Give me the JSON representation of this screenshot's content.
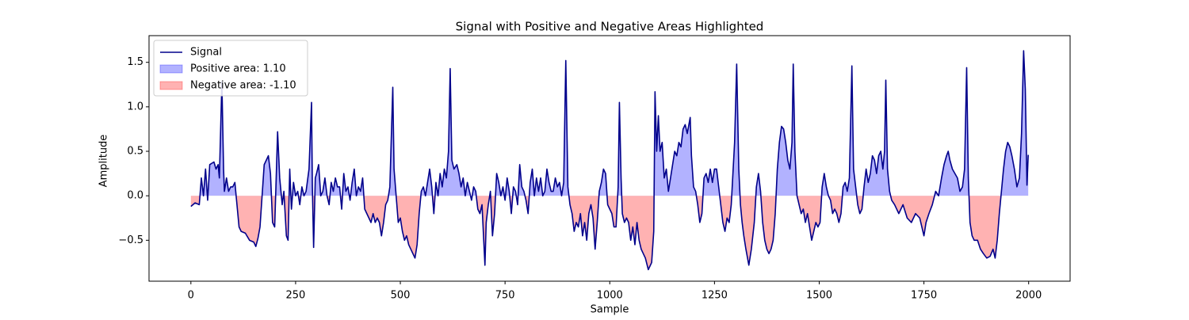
{
  "chart_data": {
    "type": "line",
    "title": "Signal with Positive and Negative Areas Highlighted",
    "x_label": "Sample",
    "y_label": "Amplitude",
    "x": [
      0,
      10,
      20,
      25,
      30,
      35,
      40,
      45,
      55,
      60,
      65,
      68,
      74,
      78,
      80,
      85,
      90,
      95,
      100,
      105,
      110,
      115,
      120,
      130,
      140,
      150,
      155,
      160,
      165,
      170,
      175,
      180,
      185,
      190,
      195,
      200,
      203,
      207,
      212,
      218,
      222,
      228,
      232,
      236,
      240,
      245,
      250,
      255,
      260,
      265,
      270,
      275,
      282,
      288,
      290,
      293,
      297,
      300,
      305,
      310,
      315,
      320,
      325,
      330,
      335,
      340,
      345,
      350,
      355,
      360,
      365,
      370,
      375,
      380,
      385,
      390,
      395,
      400,
      405,
      410,
      415,
      420,
      425,
      430,
      435,
      440,
      445,
      450,
      455,
      460,
      465,
      470,
      475,
      482,
      485,
      490,
      495,
      500,
      505,
      510,
      515,
      520,
      525,
      530,
      535,
      540,
      545,
      550,
      555,
      560,
      565,
      570,
      575,
      580,
      585,
      590,
      595,
      600,
      605,
      610,
      615,
      619,
      623,
      628,
      635,
      640,
      645,
      650,
      655,
      660,
      665,
      670,
      675,
      680,
      685,
      690,
      695,
      702,
      705,
      710,
      715,
      720,
      725,
      730,
      735,
      740,
      745,
      750,
      755,
      760,
      765,
      770,
      775,
      780,
      785,
      790,
      795,
      800,
      805,
      810,
      815,
      820,
      825,
      830,
      835,
      840,
      845,
      850,
      855,
      860,
      865,
      870,
      875,
      880,
      885,
      890,
      895,
      900,
      905,
      910,
      915,
      920,
      925,
      930,
      935,
      940,
      945,
      950,
      955,
      960,
      965,
      970,
      975,
      980,
      985,
      990,
      995,
      1000,
      1005,
      1010,
      1015,
      1020,
      1023,
      1027,
      1030,
      1035,
      1040,
      1045,
      1050,
      1055,
      1060,
      1065,
      1070,
      1075,
      1080,
      1085,
      1092,
      1100,
      1105,
      1108,
      1112,
      1116,
      1120,
      1125,
      1130,
      1135,
      1140,
      1145,
      1150,
      1155,
      1160,
      1165,
      1170,
      1175,
      1180,
      1185,
      1192,
      1195,
      1200,
      1205,
      1210,
      1215,
      1220,
      1225,
      1230,
      1235,
      1240,
      1245,
      1250,
      1255,
      1260,
      1265,
      1270,
      1275,
      1280,
      1285,
      1290,
      1298,
      1303,
      1308,
      1312,
      1316,
      1320,
      1325,
      1332,
      1338,
      1345,
      1350,
      1355,
      1360,
      1365,
      1370,
      1375,
      1380,
      1385,
      1390,
      1395,
      1400,
      1405,
      1410,
      1415,
      1420,
      1425,
      1430,
      1435,
      1438,
      1442,
      1447,
      1452,
      1457,
      1462,
      1467,
      1472,
      1477,
      1482,
      1487,
      1492,
      1497,
      1502,
      1507,
      1512,
      1517,
      1522,
      1527,
      1532,
      1537,
      1542,
      1547,
      1552,
      1557,
      1562,
      1567,
      1572,
      1578,
      1582,
      1587,
      1592,
      1597,
      1602,
      1607,
      1612,
      1617,
      1622,
      1627,
      1632,
      1637,
      1642,
      1647,
      1652,
      1656,
      1659,
      1663,
      1668,
      1673,
      1680,
      1690,
      1700,
      1710,
      1720,
      1730,
      1740,
      1745,
      1750,
      1755,
      1762,
      1770,
      1778,
      1785,
      1792,
      1798,
      1804,
      1808,
      1812,
      1818,
      1824,
      1830,
      1836,
      1842,
      1847,
      1852,
      1856,
      1860,
      1865,
      1870,
      1878,
      1885,
      1892,
      1900,
      1908,
      1915,
      1920,
      1925,
      1930,
      1935,
      1940,
      1945,
      1950,
      1955,
      1960,
      1966,
      1972,
      1978,
      1983,
      1988,
      1992,
      1996,
      1999
    ],
    "series": [
      {
        "name": "Signal",
        "color": "#00008b",
        "values": [
          -0.12,
          -0.08,
          -0.1,
          0.2,
          0.0,
          0.3,
          -0.05,
          0.35,
          0.38,
          0.3,
          0.35,
          0.2,
          1.28,
          0.3,
          0.05,
          0.2,
          0.05,
          0.1,
          0.1,
          0.15,
          -0.1,
          -0.35,
          -0.4,
          -0.42,
          -0.5,
          -0.52,
          -0.57,
          -0.48,
          -0.35,
          0.0,
          0.35,
          0.4,
          0.45,
          0.25,
          -0.3,
          -0.35,
          0.1,
          0.72,
          0.2,
          -0.1,
          0.05,
          -0.45,
          -0.5,
          0.3,
          -0.15,
          0.15,
          0.0,
          0.05,
          -0.1,
          0.1,
          0.0,
          0.05,
          0.3,
          1.05,
          0.1,
          -0.58,
          0.2,
          0.25,
          0.35,
          0.0,
          0.05,
          0.2,
          0.0,
          -0.1,
          0.15,
          0.05,
          0.2,
          0.1,
          0.1,
          -0.15,
          0.25,
          0.05,
          0.1,
          -0.05,
          0.15,
          0.3,
          0.0,
          0.1,
          0.05,
          0.2,
          -0.15,
          -0.2,
          -0.25,
          -0.3,
          -0.2,
          -0.3,
          -0.25,
          -0.3,
          -0.45,
          -0.3,
          -0.1,
          -0.05,
          0.1,
          1.22,
          0.3,
          0.0,
          -0.3,
          -0.25,
          -0.4,
          -0.5,
          -0.45,
          -0.55,
          -0.6,
          -0.65,
          -0.7,
          -0.55,
          -0.2,
          0.05,
          0.1,
          0.0,
          0.15,
          0.3,
          0.1,
          -0.2,
          0.15,
          0.0,
          0.25,
          0.1,
          0.3,
          0.2,
          0.5,
          1.43,
          0.4,
          0.3,
          0.35,
          0.25,
          0.1,
          0.2,
          0.0,
          0.15,
          0.05,
          -0.05,
          0.1,
          0.05,
          -0.15,
          -0.2,
          -0.1,
          -0.78,
          -0.3,
          -0.1,
          0.05,
          -0.45,
          -0.2,
          0.25,
          0.15,
          0.0,
          0.1,
          -0.05,
          0.2,
          0.05,
          -0.2,
          0.1,
          0.05,
          -0.1,
          0.35,
          0.1,
          0.05,
          -0.05,
          -0.2,
          0.15,
          0.3,
          0.0,
          0.2,
          0.05,
          0.2,
          0.0,
          0.05,
          0.3,
          0.15,
          0.05,
          0.05,
          0.2,
          0.1,
          0.15,
          0.0,
          0.15,
          1.52,
          0.1,
          -0.1,
          -0.2,
          -0.4,
          -0.3,
          -0.35,
          -0.2,
          -0.45,
          -0.3,
          -0.5,
          -0.2,
          -0.1,
          -0.25,
          -0.6,
          -0.3,
          0.05,
          0.15,
          0.3,
          0.25,
          -0.1,
          -0.15,
          -0.2,
          -0.35,
          -0.35,
          0.1,
          1.05,
          0.2,
          -0.2,
          -0.3,
          -0.25,
          -0.3,
          -0.5,
          -0.35,
          -0.55,
          -0.3,
          -0.5,
          -0.6,
          -0.65,
          -0.7,
          -0.83,
          -0.75,
          -0.4,
          1.17,
          0.5,
          0.9,
          0.5,
          0.6,
          0.2,
          0.3,
          0.05,
          0.2,
          0.35,
          0.5,
          0.45,
          0.6,
          0.55,
          0.75,
          0.8,
          0.7,
          0.88,
          0.45,
          0.1,
          0.05,
          -0.1,
          -0.3,
          -0.2,
          0.2,
          0.25,
          0.15,
          0.3,
          0.15,
          0.3,
          0.3,
          0.1,
          -0.1,
          -0.3,
          -0.4,
          -0.25,
          -0.3,
          -0.1,
          0.6,
          1.48,
          0.3,
          -0.1,
          -0.3,
          -0.45,
          -0.6,
          -0.78,
          -0.6,
          -0.3,
          0.1,
          0.25,
          0.05,
          -0.3,
          -0.5,
          -0.6,
          -0.65,
          -0.6,
          -0.5,
          -0.2,
          0.3,
          0.6,
          0.78,
          0.75,
          0.6,
          0.4,
          0.3,
          0.6,
          1.48,
          0.5,
          0.0,
          -0.1,
          -0.2,
          -0.15,
          -0.3,
          -0.2,
          -0.35,
          -0.5,
          -0.4,
          -0.3,
          -0.35,
          -0.3,
          0.1,
          0.25,
          0.1,
          0.0,
          -0.05,
          -0.2,
          -0.15,
          -0.2,
          -0.3,
          -0.2,
          0.1,
          0.15,
          0.05,
          0.2,
          1.46,
          0.3,
          0.1,
          -0.1,
          -0.2,
          -0.15,
          0.1,
          0.3,
          0.15,
          0.25,
          0.45,
          0.4,
          0.25,
          0.45,
          0.5,
          0.3,
          0.5,
          1.3,
          0.3,
          0.05,
          -0.05,
          -0.1,
          -0.2,
          -0.1,
          -0.25,
          -0.3,
          -0.2,
          -0.25,
          -0.35,
          -0.45,
          -0.3,
          -0.2,
          -0.1,
          0.05,
          0.0,
          0.2,
          0.35,
          0.45,
          0.5,
          0.4,
          0.3,
          0.25,
          0.2,
          0.05,
          0.1,
          0.3,
          1.44,
          0.2,
          -0.3,
          -0.45,
          -0.5,
          -0.5,
          -0.6,
          -0.65,
          -0.7,
          -0.68,
          -0.6,
          -0.7,
          -0.5,
          -0.2,
          0.05,
          0.3,
          0.5,
          0.6,
          0.55,
          0.45,
          0.3,
          0.1,
          0.2,
          0.7,
          1.63,
          1.2,
          0.12,
          0.46
        ]
      }
    ],
    "fills": [
      {
        "name": "Positive area: 1.10",
        "color": "#0000ff"
      },
      {
        "name": "Negative area: -1.10",
        "color": "#ff0000"
      }
    ],
    "xlim": [
      -99.95,
      2098.95
    ],
    "ylim": [
      -0.96,
      1.8
    ],
    "xticks": [
      0,
      250,
      500,
      750,
      1000,
      1250,
      1500,
      1750,
      2000
    ],
    "yticks": [
      {
        "value": -0.5,
        "label": "−0.5"
      },
      {
        "value": 0,
        "label": "0.0"
      },
      0.5,
      {
        "value": 1,
        "label": "1.0"
      },
      {
        "value": 1.5,
        "label": "1.5"
      }
    ],
    "legend": "upper left"
  }
}
